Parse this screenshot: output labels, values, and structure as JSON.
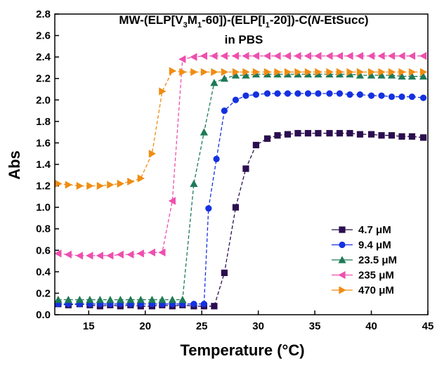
{
  "chart_data": {
    "type": "line",
    "title": {
      "line1": {
        "prefix": "MW-(ELP[V",
        "sub1": "3",
        "mid1": "M",
        "sub2": "1",
        "mid2": "-60])-(ELP[I",
        "sub3": "1",
        "suffix_a": "-20])-C(",
        "italic": "N",
        "suffix_b": "-EtSucc)"
      },
      "line2": "in PBS"
    },
    "xlabel": "Temperature (°C)",
    "ylabel": "Abs",
    "xlim": [
      12,
      45
    ],
    "ylim": [
      0.0,
      2.8
    ],
    "xticks": [
      15,
      20,
      25,
      30,
      35,
      40,
      45
    ],
    "yticks": [
      0.0,
      0.2,
      0.4,
      0.6,
      0.8,
      1.0,
      1.2,
      1.4,
      1.6,
      1.8,
      2.0,
      2.2,
      2.4,
      2.6,
      2.8
    ],
    "grid": false,
    "legend_position": "bottom-right",
    "series": [
      {
        "name": "4.7 μM",
        "color": "#2b0e4f",
        "marker": "square",
        "x": [
          12.3,
          13.2,
          14.2,
          15.1,
          16.0,
          16.9,
          17.8,
          18.7,
          19.6,
          20.6,
          21.5,
          22.4,
          23.3,
          24.3,
          25.2,
          26.1,
          27.0,
          28.0,
          28.9,
          29.8,
          30.8,
          31.7,
          32.6,
          33.5,
          34.4,
          35.3,
          36.3,
          37.2,
          38.1,
          39.0,
          40.0,
          40.9,
          41.8,
          42.7,
          43.6,
          44.6
        ],
        "y": [
          0.1,
          0.09,
          0.1,
          0.09,
          0.08,
          0.09,
          0.08,
          0.09,
          0.08,
          0.08,
          0.09,
          0.08,
          0.09,
          0.08,
          0.08,
          0.08,
          0.39,
          1.0,
          1.36,
          1.58,
          1.64,
          1.67,
          1.68,
          1.69,
          1.69,
          1.69,
          1.69,
          1.69,
          1.69,
          1.68,
          1.68,
          1.67,
          1.67,
          1.66,
          1.66,
          1.65
        ]
      },
      {
        "name": "9.4 μM",
        "color": "#1431e0",
        "marker": "circle",
        "x": [
          12.3,
          13.2,
          14.2,
          15.1,
          16.0,
          16.9,
          17.8,
          18.7,
          19.6,
          20.6,
          21.5,
          22.4,
          23.3,
          24.3,
          25.2,
          25.6,
          26.3,
          27.0,
          28.0,
          28.9,
          29.8,
          30.8,
          31.7,
          32.6,
          33.5,
          34.4,
          35.3,
          36.3,
          37.2,
          38.1,
          39.0,
          40.0,
          40.9,
          41.8,
          42.7,
          43.6,
          44.6
        ],
        "y": [
          0.1,
          0.1,
          0.1,
          0.1,
          0.1,
          0.1,
          0.1,
          0.1,
          0.1,
          0.1,
          0.1,
          0.1,
          0.1,
          0.1,
          0.1,
          0.99,
          1.45,
          1.9,
          2.0,
          2.04,
          2.05,
          2.06,
          2.06,
          2.06,
          2.06,
          2.06,
          2.06,
          2.06,
          2.06,
          2.05,
          2.05,
          2.04,
          2.04,
          2.03,
          2.03,
          2.03,
          2.02
        ]
      },
      {
        "name": "23.5 μM",
        "color": "#1e7a57",
        "marker": "triangle-up",
        "x": [
          12.3,
          13.2,
          14.2,
          15.1,
          16.0,
          16.9,
          17.8,
          18.7,
          19.6,
          20.6,
          21.5,
          22.4,
          23.3,
          24.3,
          25.2,
          26.1,
          27.0,
          28.0,
          28.9,
          29.8,
          30.8,
          31.7,
          32.6,
          33.5,
          34.4,
          35.3,
          36.3,
          37.2,
          38.1,
          39.0,
          40.0,
          40.9,
          41.8,
          42.7,
          43.6,
          44.6
        ],
        "y": [
          0.14,
          0.14,
          0.14,
          0.14,
          0.14,
          0.14,
          0.14,
          0.14,
          0.14,
          0.14,
          0.14,
          0.14,
          0.14,
          1.22,
          1.7,
          2.16,
          2.2,
          2.23,
          2.23,
          2.24,
          2.24,
          2.24,
          2.24,
          2.24,
          2.24,
          2.24,
          2.24,
          2.24,
          2.24,
          2.23,
          2.23,
          2.23,
          2.23,
          2.22,
          2.22,
          2.22
        ]
      },
      {
        "name": "235 μM",
        "color": "#ee4fae",
        "marker": "triangle-left",
        "x": [
          12.3,
          13.2,
          14.2,
          15.1,
          16.0,
          16.9,
          17.8,
          18.7,
          19.6,
          20.6,
          21.5,
          22.4,
          23.3,
          24.3,
          25.2,
          26.1,
          27.0,
          28.0,
          28.9,
          29.8,
          30.8,
          31.7,
          32.6,
          33.5,
          34.4,
          35.3,
          36.3,
          37.2,
          38.1,
          39.0,
          40.0,
          40.9,
          41.8,
          42.7,
          43.6,
          44.6
        ],
        "y": [
          0.57,
          0.56,
          0.55,
          0.55,
          0.55,
          0.55,
          0.56,
          0.56,
          0.57,
          0.58,
          0.58,
          1.06,
          2.38,
          2.4,
          2.41,
          2.41,
          2.41,
          2.41,
          2.41,
          2.41,
          2.41,
          2.41,
          2.41,
          2.41,
          2.41,
          2.41,
          2.41,
          2.41,
          2.41,
          2.41,
          2.41,
          2.41,
          2.41,
          2.41,
          2.41,
          2.41
        ]
      },
      {
        "name": "470 μM",
        "color": "#f08c12",
        "marker": "triangle-right",
        "x": [
          12.3,
          13.2,
          14.2,
          15.1,
          16.0,
          16.9,
          17.8,
          18.7,
          19.6,
          20.6,
          21.5,
          22.4,
          23.3,
          24.3,
          25.2,
          26.1,
          27.0,
          28.0,
          28.9,
          29.8,
          30.8,
          31.7,
          32.6,
          33.5,
          34.4,
          35.3,
          36.3,
          37.2,
          38.1,
          39.0,
          40.0,
          40.9,
          41.8,
          42.7,
          43.6,
          44.6
        ],
        "y": [
          1.22,
          1.21,
          1.2,
          1.2,
          1.2,
          1.21,
          1.22,
          1.24,
          1.27,
          1.5,
          2.08,
          2.27,
          2.26,
          2.26,
          2.26,
          2.26,
          2.26,
          2.26,
          2.26,
          2.26,
          2.26,
          2.26,
          2.26,
          2.26,
          2.26,
          2.26,
          2.26,
          2.26,
          2.26,
          2.26,
          2.26,
          2.26,
          2.26,
          2.26,
          2.26,
          2.26
        ]
      }
    ]
  }
}
